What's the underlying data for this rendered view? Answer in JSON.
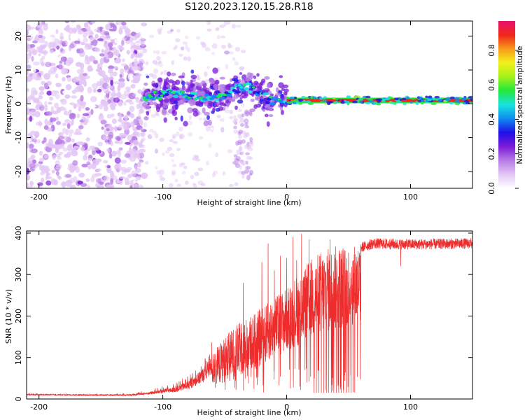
{
  "title": "S120.2023.120.15.28.R18",
  "chart_data": [
    {
      "type": "heatmap",
      "xlabel": "Height of straight line (km)",
      "ylabel": "Frequency (Hz)",
      "xlim": [
        -210,
        150
      ],
      "ylim": [
        -25,
        24.5
      ],
      "xticks": [
        -200,
        -100,
        0,
        100
      ],
      "yticks": [
        -20,
        -10,
        0,
        10,
        20
      ],
      "colorbar": {
        "label": "Normalized spectral amplitude",
        "range": [
          0,
          0.97
        ],
        "ticks": [
          "0.0",
          "0.2",
          "0.4",
          "0.6",
          "0.8"
        ],
        "tick_values": [
          0.0,
          0.2,
          0.4,
          0.6,
          0.8
        ],
        "colormap": [
          "#ffffff",
          "#e3c6f5",
          "#b67be6",
          "#7a1bd8",
          "#1e10e8",
          "#0f8cf0",
          "#19e4e0",
          "#22e83a",
          "#a3f21a",
          "#f2f21a",
          "#f79a1a",
          "#f0261a",
          "#e8126e"
        ]
      },
      "features": {
        "noise_region": [
          -210,
          -120
        ],
        "scatter_region": [
          -115,
          0
        ],
        "coherent_line_start": 0,
        "coherent_line_frequency": 1.0,
        "curve_points": [
          [
            -112,
            2.0
          ],
          [
            -95,
            3.0
          ],
          [
            -80,
            2.5
          ],
          [
            -65,
            1.5
          ],
          [
            -50,
            2.5
          ],
          [
            -40,
            4.5
          ],
          [
            -32,
            5.2
          ],
          [
            -24,
            3.5
          ],
          [
            -16,
            1.5
          ],
          [
            -10,
            0.5
          ],
          [
            -4,
            1.5
          ],
          [
            0,
            1.2
          ]
        ]
      }
    },
    {
      "type": "line",
      "xlabel": "Height of straight line (km)",
      "ylabel": "SNR (10 * v/v)",
      "xlim": [
        -210,
        150
      ],
      "ylim": [
        0,
        405
      ],
      "xticks": [
        -200,
        -100,
        0,
        100
      ],
      "yticks": [
        0,
        100,
        200,
        300,
        400
      ],
      "color": "#ee2c2c",
      "envelope": [
        [
          -210,
          12,
          10
        ],
        [
          -180,
          11,
          10
        ],
        [
          -150,
          11,
          9
        ],
        [
          -125,
          12,
          9
        ],
        [
          -110,
          18,
          12
        ],
        [
          -100,
          25,
          15
        ],
        [
          -90,
          30,
          18
        ],
        [
          -80,
          45,
          25
        ],
        [
          -70,
          70,
          40
        ],
        [
          -60,
          110,
          60
        ],
        [
          -50,
          150,
          80
        ],
        [
          -40,
          180,
          100
        ],
        [
          -30,
          200,
          130
        ],
        [
          -20,
          220,
          160
        ],
        [
          -10,
          245,
          200
        ],
        [
          0,
          270,
          230
        ],
        [
          10,
          305,
          260
        ],
        [
          20,
          340,
          290
        ],
        [
          30,
          362,
          310
        ],
        [
          40,
          370,
          330
        ],
        [
          50,
          372,
          345
        ],
        [
          55,
          375,
          355
        ],
        [
          70,
          375,
          370
        ],
        [
          90,
          372,
          368
        ],
        [
          110,
          370,
          368
        ],
        [
          150,
          370,
          370
        ]
      ],
      "spikes": [
        [
          -35,
          280
        ],
        [
          -20,
          330
        ],
        [
          -15,
          375
        ],
        [
          -10,
          310
        ],
        [
          -5,
          345
        ],
        [
          0,
          340
        ],
        [
          5,
          390
        ],
        [
          8,
          335
        ],
        [
          12,
          398
        ],
        [
          18,
          385
        ],
        [
          22,
          400
        ],
        [
          28,
          375
        ],
        [
          35,
          385
        ],
        [
          42,
          380
        ],
        [
          50,
          370
        ]
      ],
      "dropouts": [
        [
          22,
          15
        ],
        [
          24,
          15
        ],
        [
          26,
          15
        ],
        [
          28,
          15
        ],
        [
          30,
          15
        ],
        [
          32,
          15
        ],
        [
          34,
          15
        ],
        [
          36,
          15
        ],
        [
          38,
          15
        ],
        [
          40,
          15
        ],
        [
          42,
          15
        ],
        [
          44,
          15
        ],
        [
          46,
          15
        ],
        [
          48,
          15
        ],
        [
          50,
          15
        ],
        [
          52,
          15
        ],
        [
          55,
          15
        ],
        [
          92,
          320
        ]
      ]
    }
  ]
}
